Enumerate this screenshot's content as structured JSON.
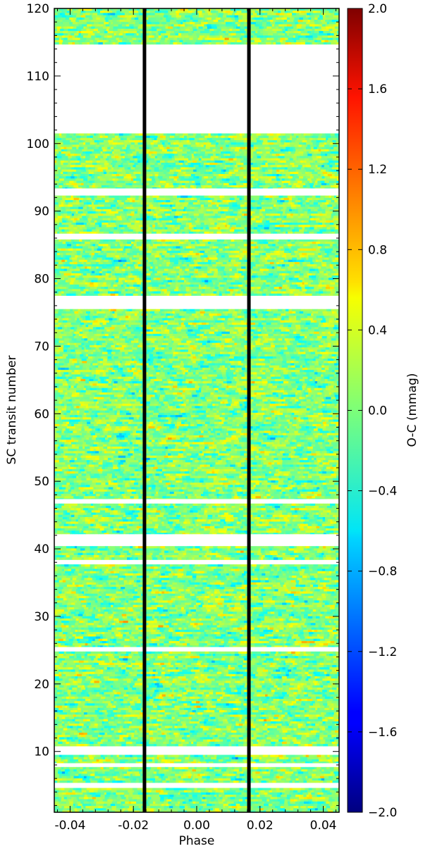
{
  "chart_data": {
    "type": "heatmap",
    "title": "",
    "xlabel": "Phase",
    "ylabel": "SC transit number",
    "xlim": [
      -0.045,
      0.045
    ],
    "ylim": [
      1,
      120
    ],
    "x_ticks": [
      -0.04,
      -0.02,
      0.0,
      0.02,
      0.04
    ],
    "x_tick_labels": [
      "-0.04",
      "-0.02",
      "0.00",
      "0.02",
      "0.04"
    ],
    "y_ticks": [
      10,
      20,
      30,
      40,
      50,
      60,
      70,
      80,
      90,
      100,
      110,
      120
    ],
    "y_tick_labels": [
      "10",
      "20",
      "30",
      "40",
      "50",
      "60",
      "70",
      "80",
      "90",
      "100",
      "110",
      "120"
    ],
    "vertical_lines_phase": [
      -0.0165,
      0.0165
    ],
    "data_ranges": [
      [
        1,
        4.6
      ],
      [
        5.4,
        7.7
      ],
      [
        8.3,
        9.5
      ],
      [
        10.8,
        24.8
      ],
      [
        25.5,
        37.7
      ],
      [
        38.4,
        40.4
      ],
      [
        42.2,
        46.7
      ],
      [
        47.4,
        75.5
      ],
      [
        77.5,
        85.8
      ],
      [
        86.7,
        92.3
      ],
      [
        93.4,
        101.5
      ],
      [
        114.7,
        120
      ]
    ],
    "colorbar": {
      "label": "O-C (mmag)",
      "range": [
        -2.0,
        2.0
      ],
      "ticks": [
        2.0,
        1.6,
        1.2,
        0.8,
        0.4,
        0.0,
        -0.4,
        -0.8,
        -1.2,
        -1.6,
        -2.0
      ],
      "tick_labels": [
        "2.0",
        "1.6",
        "1.2",
        "0.8",
        "0.4",
        "0.0",
        "−0.4",
        "−0.8",
        "−1.2",
        "−1.6",
        "−2.0"
      ],
      "colormap": "jet"
    }
  }
}
